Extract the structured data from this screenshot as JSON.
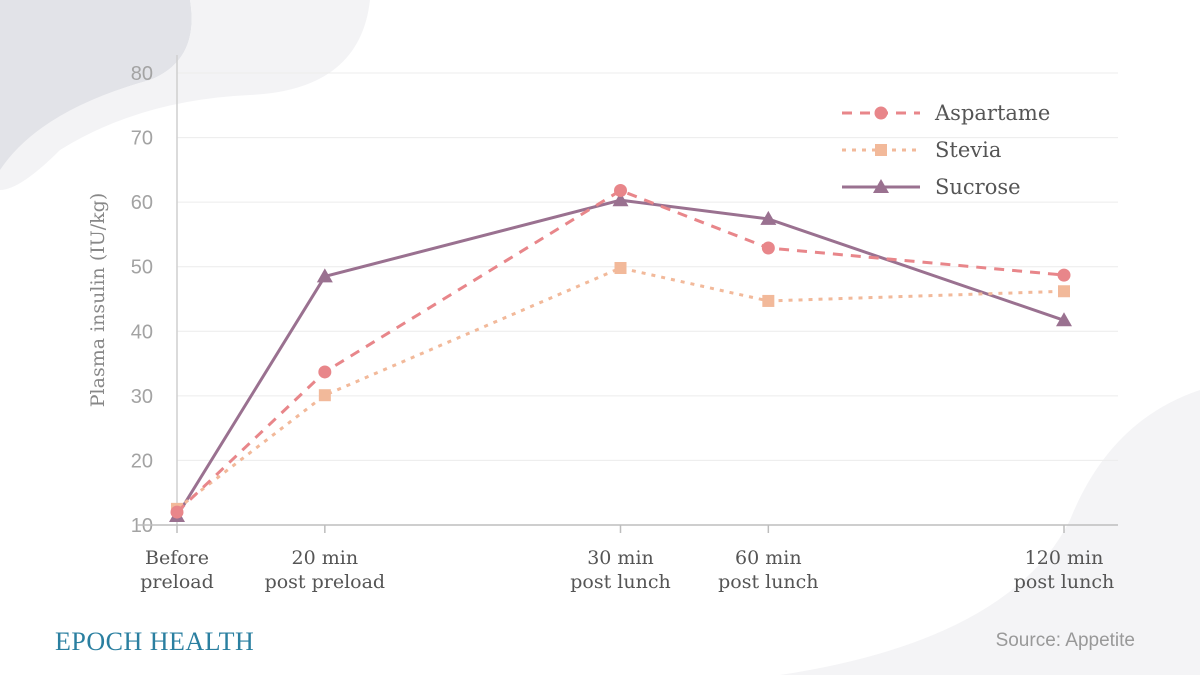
{
  "chart_data": {
    "type": "line",
    "title": "",
    "xlabel": "",
    "ylabel": "Plasma insulin (IU/kg)",
    "ylim": [
      10,
      80
    ],
    "yticks": [
      10,
      20,
      30,
      40,
      50,
      60,
      70,
      80
    ],
    "grid": true,
    "legend_position": "top-right",
    "x": [
      0,
      20,
      60,
      80,
      120
    ],
    "categories": [
      [
        "Before",
        "preload"
      ],
      [
        "20 min",
        "post preload"
      ],
      [
        "30 min",
        "post lunch"
      ],
      [
        "60 min",
        "post lunch"
      ],
      [
        "120 min",
        "post lunch"
      ]
    ],
    "series": [
      {
        "name": "Aspartame",
        "values": [
          12.0,
          33.7,
          61.8,
          52.9,
          48.7
        ],
        "color": "#e8868a",
        "marker": "circle",
        "dash": "10,8"
      },
      {
        "name": "Stevia",
        "values": [
          12.5,
          30.1,
          49.8,
          44.7,
          46.2
        ],
        "color": "#f2b99a",
        "marker": "square",
        "dash": "4,6"
      },
      {
        "name": "Sucrose",
        "values": [
          11.4,
          48.5,
          60.3,
          57.4,
          41.7
        ],
        "color": "#9a7190",
        "marker": "triangle",
        "dash": ""
      }
    ]
  },
  "branding": {
    "logo": "EPOCH HEALTH"
  },
  "source": "Source: Appetite"
}
